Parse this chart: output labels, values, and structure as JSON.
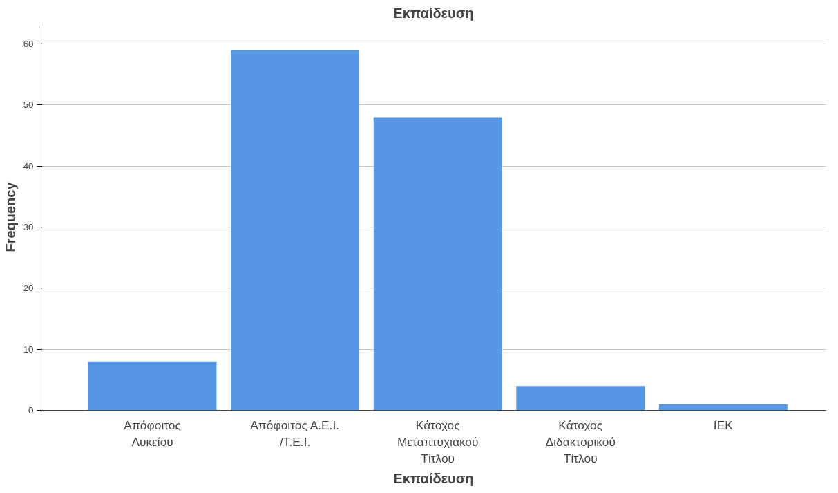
{
  "chart_data": {
    "type": "bar",
    "title": "Εκπαίδευση",
    "xlabel": "Εκπαίδευση",
    "ylabel": "Frequency",
    "categories": [
      "Απόφοιτος Λυκείου",
      "Απόφοιτος Α.Ε.Ι. /Τ.Ε.Ι.",
      "Κάτοχος Μεταπτυχιακού Τίτλου",
      "Κάτοχος Διδακτορικού Τίτλου",
      "ΙΕΚ"
    ],
    "values": [
      8,
      59,
      48,
      4,
      1
    ],
    "color": "#5597e3",
    "ylim": [
      0,
      63.3
    ],
    "yticks": [
      0,
      10,
      20,
      30,
      40,
      50,
      60
    ],
    "grid": "y"
  }
}
